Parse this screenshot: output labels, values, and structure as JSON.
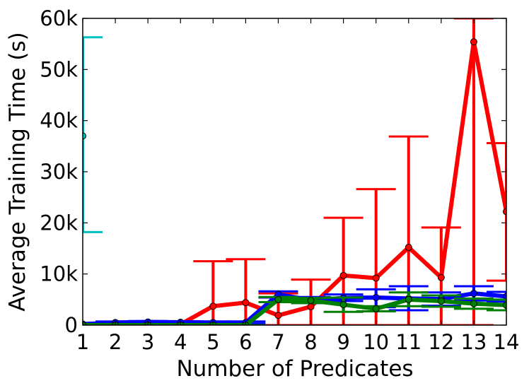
{
  "chart_data": {
    "type": "line",
    "xlabel": "Number of Predicates",
    "ylabel": "Average Training Time (s)",
    "xlim": [
      1,
      14
    ],
    "ylim": [
      0,
      60000
    ],
    "x_ticks": [
      "1",
      "2",
      "3",
      "4",
      "5",
      "6",
      "7",
      "8",
      "9",
      "10",
      "11",
      "12",
      "13",
      "14"
    ],
    "y_ticks": [
      {
        "value": 0,
        "label": "0"
      },
      {
        "value": 10000,
        "label": "10k"
      },
      {
        "value": 20000,
        "label": "20k"
      },
      {
        "value": 30000,
        "label": "30k"
      },
      {
        "value": 40000,
        "label": "40k"
      },
      {
        "value": 50000,
        "label": "50k"
      },
      {
        "value": 60000,
        "label": "60k"
      }
    ],
    "grid": false,
    "legend": null,
    "series": [
      {
        "color": "#ff0000",
        "points": [
          {
            "x": 1,
            "y": 0,
            "lo": 0,
            "hi": 0
          },
          {
            "x": 2,
            "y": 100,
            "lo": 0,
            "hi": 200
          },
          {
            "x": 3,
            "y": 150,
            "lo": 0,
            "hi": 300
          },
          {
            "x": 4,
            "y": 150,
            "lo": 0,
            "hi": 300
          },
          {
            "x": 5,
            "y": 3700,
            "lo": 0,
            "hi": 12500
          },
          {
            "x": 6,
            "y": 4400,
            "lo": 0,
            "hi": 12900
          },
          {
            "x": 7,
            "y": 1900,
            "lo": 0,
            "hi": 6200
          },
          {
            "x": 8,
            "y": 3600,
            "lo": 0,
            "hi": 8900
          },
          {
            "x": 9,
            "y": 9700,
            "lo": 0,
            "hi": 21000
          },
          {
            "x": 10,
            "y": 9200,
            "lo": 0,
            "hi": 26600
          },
          {
            "x": 11,
            "y": 15200,
            "lo": 0,
            "hi": 36900
          },
          {
            "x": 12,
            "y": 9300,
            "lo": 0,
            "hi": 19100
          },
          {
            "x": 13,
            "y": 55400,
            "lo": 0,
            "hi": 60000
          },
          {
            "x": 14,
            "y": 22200,
            "lo": 8700,
            "hi": 35600
          }
        ]
      },
      {
        "color": "#0000ff",
        "points": [
          {
            "x": 1,
            "y": 200,
            "lo": 100,
            "hi": 300
          },
          {
            "x": 2,
            "y": 500,
            "lo": 300,
            "hi": 700
          },
          {
            "x": 3,
            "y": 600,
            "lo": 400,
            "hi": 800
          },
          {
            "x": 4,
            "y": 550,
            "lo": 350,
            "hi": 750
          },
          {
            "x": 5,
            "y": 500,
            "lo": 300,
            "hi": 700
          },
          {
            "x": 6,
            "y": 500,
            "lo": 300,
            "hi": 700
          },
          {
            "x": 7,
            "y": 6000,
            "lo": 5400,
            "hi": 6600
          },
          {
            "x": 8,
            "y": 4900,
            "lo": 4300,
            "hi": 5500
          },
          {
            "x": 9,
            "y": 5300,
            "lo": 4700,
            "hi": 6000
          },
          {
            "x": 10,
            "y": 5400,
            "lo": 3500,
            "hi": 7000
          },
          {
            "x": 11,
            "y": 5200,
            "lo": 2900,
            "hi": 7600
          },
          {
            "x": 12,
            "y": 5100,
            "lo": 3800,
            "hi": 6400
          },
          {
            "x": 13,
            "y": 6200,
            "lo": 4800,
            "hi": 7600
          },
          {
            "x": 14,
            "y": 5600,
            "lo": 4600,
            "hi": 6500
          }
        ]
      },
      {
        "color": "#008000",
        "points": [
          {
            "x": 1,
            "y": 0,
            "lo": 0,
            "hi": 0
          },
          {
            "x": 2,
            "y": 0,
            "lo": 0,
            "hi": 0
          },
          {
            "x": 3,
            "y": 0,
            "lo": 0,
            "hi": 0
          },
          {
            "x": 4,
            "y": 0,
            "lo": 0,
            "hi": 0
          },
          {
            "x": 5,
            "y": 0,
            "lo": 0,
            "hi": 0
          },
          {
            "x": 6,
            "y": 0,
            "lo": 0,
            "hi": 0
          },
          {
            "x": 7,
            "y": 5000,
            "lo": 4500,
            "hi": 5500
          },
          {
            "x": 8,
            "y": 4800,
            "lo": 4300,
            "hi": 5300
          },
          {
            "x": 9,
            "y": 4000,
            "lo": 2600,
            "hi": 5400
          },
          {
            "x": 10,
            "y": 3200,
            "lo": 2700,
            "hi": 3700
          },
          {
            "x": 11,
            "y": 5000,
            "lo": 3700,
            "hi": 6400
          },
          {
            "x": 12,
            "y": 4700,
            "lo": 3600,
            "hi": 5800
          },
          {
            "x": 13,
            "y": 4200,
            "lo": 3200,
            "hi": 5200
          },
          {
            "x": 14,
            "y": 3900,
            "lo": 2900,
            "hi": 5000
          }
        ]
      },
      {
        "color": "#00bfbf",
        "points": [
          {
            "x": 1,
            "y": 37000,
            "lo": 18200,
            "hi": 56300
          }
        ]
      }
    ]
  }
}
